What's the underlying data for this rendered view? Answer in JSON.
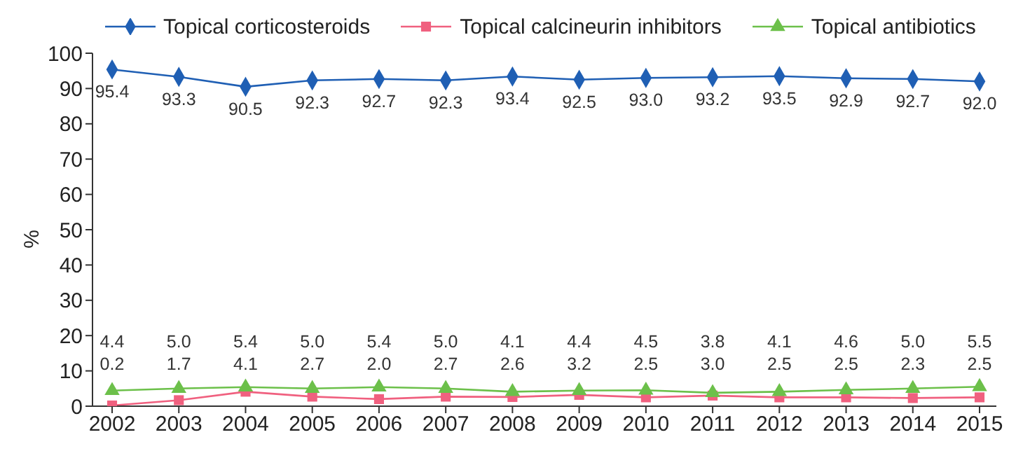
{
  "chart_data": {
    "type": "line",
    "ylabel": "%",
    "categories": [
      "2002",
      "2003",
      "2004",
      "2005",
      "2006",
      "2007",
      "2008",
      "2009",
      "2010",
      "2011",
      "2012",
      "2013",
      "2014",
      "2015"
    ],
    "series": [
      {
        "name": "Topical corticosteroids",
        "color": "#1f5fb4",
        "marker": "diamond",
        "values": [
          95.4,
          93.3,
          90.5,
          92.3,
          92.7,
          92.3,
          93.4,
          92.5,
          93.0,
          93.2,
          93.5,
          92.9,
          92.7,
          92.0
        ],
        "value_labels": [
          "95.4",
          "93.3",
          "90.5",
          "92.3",
          "92.7",
          "92.3",
          "93.4",
          "92.5",
          "93.0",
          "93.2",
          "93.5",
          "92.9",
          "92.7",
          "92.0"
        ]
      },
      {
        "name": "Topical calcineurin inhibitors",
        "color": "#f0607f",
        "marker": "square",
        "values": [
          0.2,
          1.7,
          4.1,
          2.7,
          2.0,
          2.7,
          2.6,
          3.2,
          2.5,
          3.0,
          2.5,
          2.5,
          2.3,
          2.5
        ],
        "value_labels": [
          "0.2",
          "1.7",
          "4.1",
          "2.7",
          "2.0",
          "2.7",
          "2.6",
          "3.2",
          "2.5",
          "3.0",
          "2.5",
          "2.5",
          "2.3",
          "2.5"
        ]
      },
      {
        "name": "Topical antibiotics",
        "color": "#6cc04a",
        "marker": "triangle",
        "values": [
          4.4,
          5.0,
          5.4,
          5.0,
          5.4,
          5.0,
          4.1,
          4.4,
          4.5,
          3.8,
          4.1,
          4.6,
          5.0,
          5.5
        ],
        "value_labels": [
          "4.4",
          "5.0",
          "5.4",
          "5.0",
          "5.4",
          "5.0",
          "4.1",
          "4.4",
          "4.5",
          "3.8",
          "4.1",
          "4.6",
          "5.0",
          "5.5"
        ]
      }
    ],
    "ylim": [
      0,
      100
    ],
    "yticks": [
      0,
      10,
      20,
      30,
      40,
      50,
      60,
      70,
      80,
      90,
      100
    ],
    "legend": "top",
    "line_style": "solid"
  }
}
